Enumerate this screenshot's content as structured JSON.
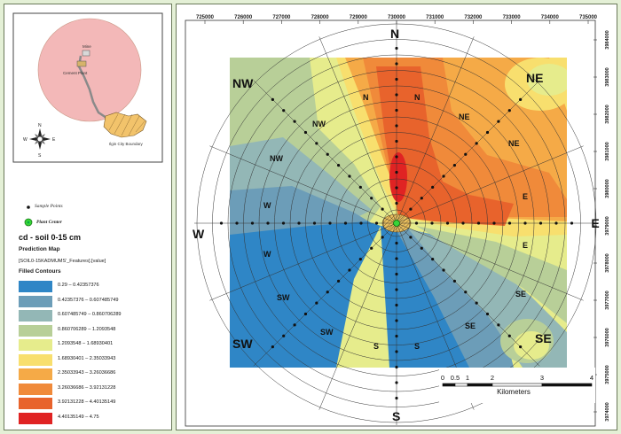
{
  "inset": {
    "labels": {
      "mine": "Mine",
      "cement_plant": "Cement Plant",
      "city_boundary": "Ilgin City Boundary"
    },
    "compass": {
      "n": "N",
      "s": "S",
      "e": "E",
      "w": "W"
    },
    "colors": {
      "circle": "#f3b8b8",
      "city": "#f2c36b"
    }
  },
  "legend": {
    "sample_points_label": "Sample Points",
    "plant_center_label": "Plant Center",
    "title": "cd - soil 0-15 cm",
    "prediction_map_label": "Prediction Map",
    "feature_label": "[SOIL0-15KADMUMS'_Features].[value]",
    "filled_contours_label": "Filled Contours",
    "classes": [
      {
        "label": "0.29 – 0.42357376",
        "color": "#2f86c6"
      },
      {
        "label": "0.42357376 – 0.607485749",
        "color": "#6c9db8"
      },
      {
        "label": "0.607485749 – 0.860706289",
        "color": "#93b7b6"
      },
      {
        "label": "0.860706289 – 1.2093548",
        "color": "#b8cf98"
      },
      {
        "label": "1.2093548 – 1.68930401",
        "color": "#e6ec8c"
      },
      {
        "label": "1.68930401 – 2.35033943",
        "color": "#f8df6e"
      },
      {
        "label": "2.35033943 – 3.26036686",
        "color": "#f5aa47"
      },
      {
        "label": "3.26036686 – 3.92131228",
        "color": "#f08a3a"
      },
      {
        "label": "3.92131228 – 4.40135149",
        "color": "#e8632c"
      },
      {
        "label": "4.40135149 – 4.75",
        "color": "#e02323"
      }
    ]
  },
  "map": {
    "x_ticks": [
      "725000",
      "726000",
      "727000",
      "728000",
      "729000",
      "730000",
      "731000",
      "732000",
      "733000",
      "734000",
      "735000"
    ],
    "y_ticks": [
      "3984000",
      "3983000",
      "3982000",
      "3981000",
      "3980000",
      "3979000",
      "3978000",
      "3977000",
      "3976000",
      "3975000",
      "3974000"
    ],
    "directions_outer": {
      "n": "N",
      "s": "S",
      "e": "E",
      "w": "W",
      "ne": "NE",
      "nw": "NW",
      "se": "SE",
      "sw": "SW"
    },
    "directions_inner": [
      {
        "label": "N",
        "key": "n1"
      },
      {
        "label": "N",
        "key": "n2"
      },
      {
        "label": "NE",
        "key": "ne1"
      },
      {
        "label": "NE",
        "key": "ne2"
      },
      {
        "label": "NW",
        "key": "nw1"
      },
      {
        "label": "NW",
        "key": "nw2"
      },
      {
        "label": "E",
        "key": "e1"
      },
      {
        "label": "E",
        "key": "e2"
      },
      {
        "label": "W",
        "key": "w1"
      },
      {
        "label": "W",
        "key": "w2"
      },
      {
        "label": "SW",
        "key": "sw1"
      },
      {
        "label": "SW",
        "key": "sw2"
      },
      {
        "label": "SE",
        "key": "se1"
      },
      {
        "label": "SE",
        "key": "se2"
      },
      {
        "label": "S",
        "key": "s1"
      },
      {
        "label": "S",
        "key": "s2"
      }
    ],
    "scalebar": {
      "labels": [
        "0",
        "0.5",
        "1",
        "2",
        "3",
        "4"
      ],
      "unit": "Kilometers"
    }
  }
}
